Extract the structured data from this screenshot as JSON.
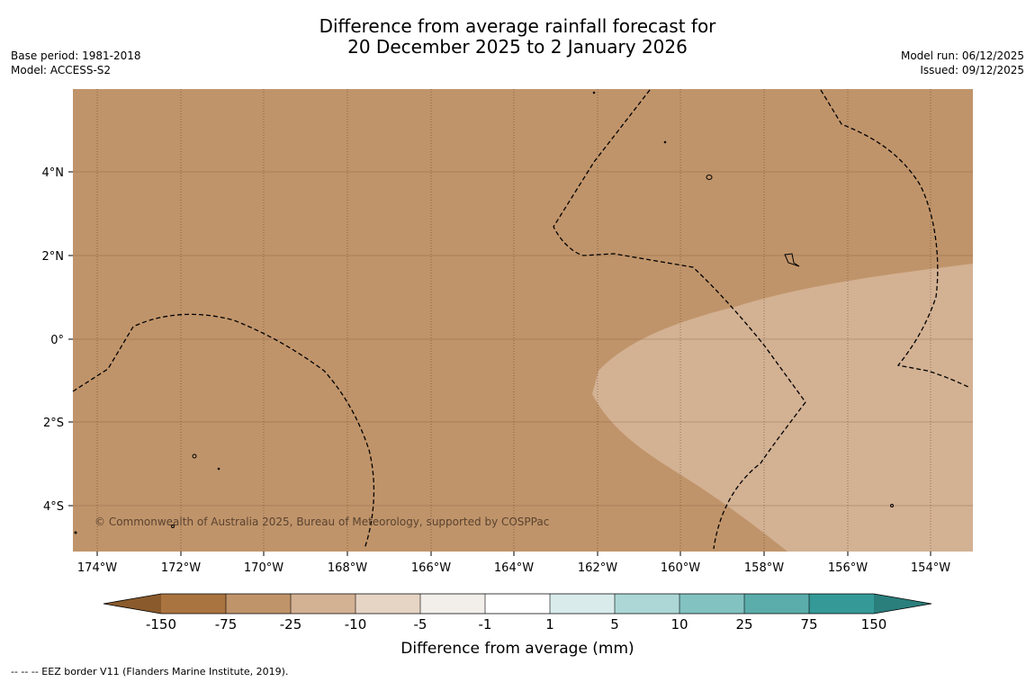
{
  "title": {
    "line1": "Difference from average rainfall forecast for",
    "line2": "20 December 2025 to 2 January 2026"
  },
  "meta_left": {
    "base_period": "Base period: 1981-2018",
    "model": "Model: ACCESS-S2"
  },
  "meta_right": {
    "model_run": "Model run: 06/12/2025",
    "issued": "Issued: 09/12/2025"
  },
  "map": {
    "lon_labels": [
      "174°W",
      "172°W",
      "170°W",
      "168°W",
      "166°W",
      "164°W",
      "162°W",
      "160°W",
      "158°W",
      "156°W",
      "154°W"
    ],
    "lat_labels": [
      "4°N",
      "2°N",
      "0°",
      "2°S",
      "4°S"
    ],
    "copyright": "© Commonwealth of Australia 2025, Bureau of Meteorology, supported by COSPPac",
    "fill_colors": {
      "below_25_75": "#c0946a",
      "below_10_25": "#d3b193"
    }
  },
  "colorbar": {
    "ticks": [
      "-150",
      "-75",
      "-25",
      "-10",
      "-5",
      "-1",
      "1",
      "5",
      "10",
      "25",
      "75",
      "150"
    ],
    "colors": [
      "#aa7440",
      "#c0946a",
      "#d3b193",
      "#e6d4c5",
      "#f2eeea",
      "#ffffff",
      "#d9eceb",
      "#acd7d6",
      "#82c2c1",
      "#5aadab",
      "#359a97"
    ],
    "extend_low_color": "#8a5a2c",
    "extend_high_color": "#2a7e7b",
    "label": "Difference from average (mm)"
  },
  "footnote": "--  --  -- EEZ border V11 (Flanders Marine Institute, 2019)."
}
